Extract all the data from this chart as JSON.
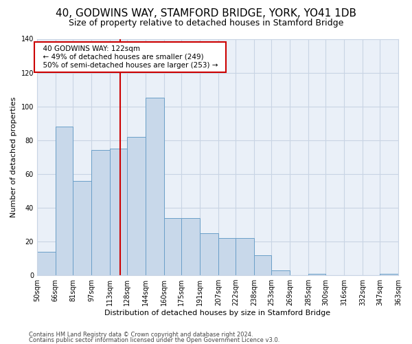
{
  "title1": "40, GODWINS WAY, STAMFORD BRIDGE, YORK, YO41 1DB",
  "title2": "Size of property relative to detached houses in Stamford Bridge",
  "xlabel": "Distribution of detached houses by size in Stamford Bridge",
  "ylabel": "Number of detached properties",
  "footer1": "Contains HM Land Registry data © Crown copyright and database right 2024.",
  "footer2": "Contains public sector information licensed under the Open Government Licence v3.0.",
  "annotation_line1": "40 GODWINS WAY: 122sqm",
  "annotation_line2": "← 49% of detached houses are smaller (249)",
  "annotation_line3": "50% of semi-detached houses are larger (253) →",
  "property_size": 122,
  "bin_edges": [
    50,
    66,
    81,
    97,
    113,
    128,
    144,
    160,
    175,
    191,
    207,
    222,
    238,
    253,
    269,
    285,
    300,
    316,
    332,
    347,
    363
  ],
  "bar_heights": [
    14,
    88,
    56,
    74,
    75,
    82,
    105,
    34,
    34,
    25,
    22,
    22,
    12,
    3,
    0,
    1,
    0,
    0,
    0,
    1
  ],
  "bar_color": "#c8d8ea",
  "bar_edge_color": "#6a9fc8",
  "vline_color": "#cc0000",
  "vline_x": 122,
  "ylim": [
    0,
    140
  ],
  "yticks": [
    0,
    20,
    40,
    60,
    80,
    100,
    120,
    140
  ],
  "grid_color": "#c8d4e4",
  "bg_color": "#eaf0f8",
  "title1_fontsize": 11,
  "title2_fontsize": 9,
  "xlabel_fontsize": 8,
  "ylabel_fontsize": 8,
  "annotation_fontsize": 7.5,
  "annotation_box_color": "#ffffff",
  "annotation_box_edge": "#cc0000",
  "footer_fontsize": 6,
  "tick_fontsize": 7
}
